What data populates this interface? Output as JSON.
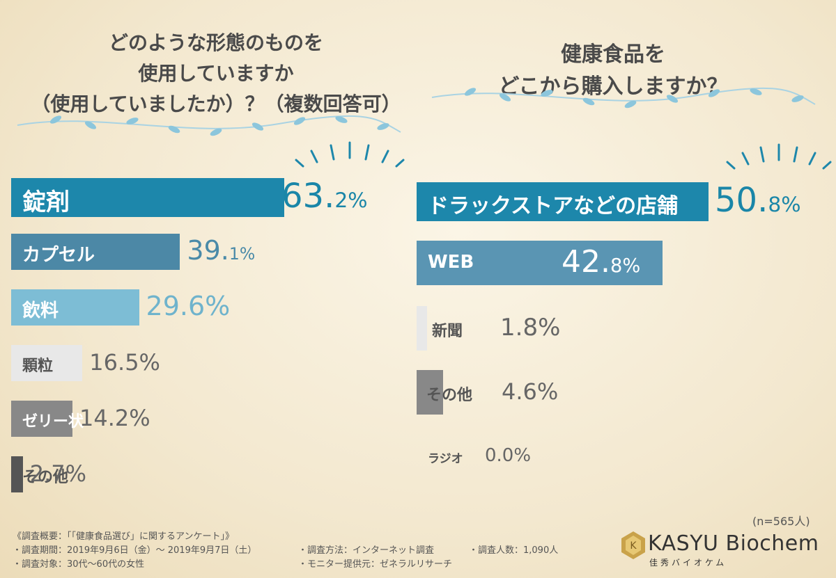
{
  "left_title": [
    "どのような形態のものを",
    "使用していますか",
    "（使用していましたか）？（複数回答可）"
  ],
  "right_title": [
    "健康食品を",
    "どこから購入しますか？"
  ],
  "chart_data": [
    {
      "type": "bar",
      "orientation": "horizontal",
      "title": "どのような形態のものを使用していますか（使用していましたか）？（複数回答可）",
      "unit": "%",
      "categories": [
        "錠剤",
        "カプセル",
        "飲料",
        "顆粒",
        "ゼリー状",
        "その他"
      ],
      "values": [
        63.2,
        39.1,
        29.6,
        16.5,
        14.2,
        2.7
      ],
      "labels": [
        {
          "int": "63.",
          "dec": "2%"
        },
        {
          "int": "39.",
          "dec": "1%"
        },
        {
          "int": "29.6%",
          "dec": ""
        },
        {
          "int": "16.5%",
          "dec": ""
        },
        {
          "int": "14.2%",
          "dec": ""
        },
        {
          "int": "2.7%",
          "dec": ""
        }
      ],
      "colors": [
        "#1d87ab",
        "#4c88a6",
        "#7dbdd5",
        "#e8e8e8",
        "#888888",
        "#555555"
      ]
    },
    {
      "type": "bar",
      "orientation": "horizontal",
      "title": "健康食品をどこから購入しますか？",
      "unit": "%",
      "categories": [
        "ドラックストアなどの店舗",
        "WEB",
        "新聞",
        "その他",
        "ラジオ"
      ],
      "values": [
        50.8,
        42.8,
        1.8,
        4.6,
        0.0
      ],
      "labels": [
        {
          "int": "50.",
          "dec": "8%"
        },
        {
          "int": "42.",
          "dec": "8%"
        },
        {
          "int": "1.8%",
          "dec": ""
        },
        {
          "int": "4.6%",
          "dec": ""
        },
        {
          "int": "0.0%",
          "dec": ""
        }
      ],
      "colors": [
        "#1d87ab",
        "#5a95b3",
        "#e8e8e8",
        "#888888",
        "#888888"
      ],
      "note": "(n=565人)"
    }
  ],
  "footer": {
    "line1": "《調査概要：「「健康食品選び」に関するアンケート」》",
    "line2a": "・調査期間：2019年9月6日（金）〜 2019年9月7日（土）",
    "line2b": "・調査方法：インターネット調査",
    "line2c": "・調査人数：1,090人",
    "line3a": "・調査対象：30代〜60代の女性",
    "line3b": "・モニター提供元：ゼネラルリサーチ"
  },
  "logo": {
    "name": "KASYU Biochem",
    "sub": "佳秀バイオケム"
  }
}
